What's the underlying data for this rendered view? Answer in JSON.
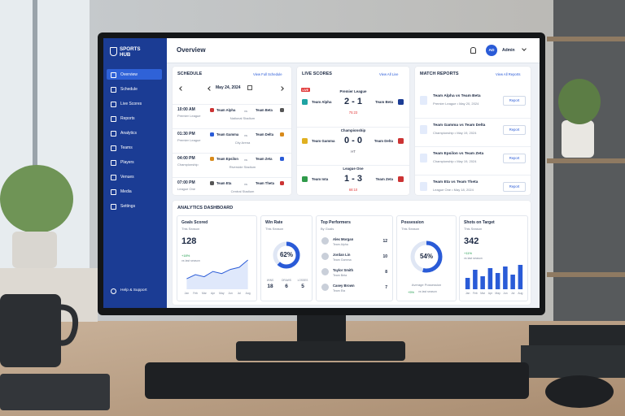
{
  "sidebar": {
    "brand": [
      "SPORTS",
      "HUB"
    ],
    "nav": [
      "Overview",
      "Schedule",
      "Live Scores",
      "Reports",
      "Analytics",
      "Teams",
      "Players",
      "Venues",
      "Media",
      "Settings"
    ],
    "help": "Help & Support"
  },
  "header": {
    "title": "Overview",
    "avatar": "AD",
    "user": "Admin"
  },
  "schedule": {
    "title": "SCHEDULE",
    "link": "View Full Schedule",
    "date": "May 24, 2024",
    "vs": "vs",
    "matches": [
      {
        "time": "10:00 AM",
        "league": "Premier League",
        "home": "Team Alpha",
        "away": "Team Beta",
        "venue": "National Stadium"
      },
      {
        "time": "01:30 PM",
        "league": "Premier League",
        "home": "Team Gamma",
        "away": "Team Delta",
        "venue": "City Arena"
      },
      {
        "time": "04:00 PM",
        "league": "Championship",
        "home": "Team Epsilon",
        "away": "Team Zeta",
        "venue": "Riverside Stadium"
      },
      {
        "time": "07:00 PM",
        "league": "League One",
        "home": "Team Eta",
        "away": "Team Theta",
        "venue": "Central Stadium"
      }
    ]
  },
  "live_scores": {
    "title": "LIVE SCORES",
    "link": "View All Live",
    "badge": "LIVE",
    "matches": [
      {
        "league": "Premier League",
        "home": "Team Alpha",
        "score": "2 - 1",
        "away": "Team Beta",
        "status": "75:23"
      },
      {
        "league": "Championship",
        "home": "Team Gamma",
        "score": "0 - 0",
        "away": "Team Delta",
        "status": "HT"
      },
      {
        "league": "League One",
        "home": "Team Iota",
        "score": "1 - 3",
        "away": "Team Zeta",
        "status": "68:10"
      }
    ]
  },
  "match_reports": {
    "title": "MATCH REPORTS",
    "link": "View All Reports",
    "button": "Report",
    "items": [
      {
        "title": "Team Alpha vs Team Beta",
        "meta": "Premier League • May 20, 2024"
      },
      {
        "title": "Team Gamma vs Team Delta",
        "meta": "Championship • May 19, 2024"
      },
      {
        "title": "Team Epsilon vs Team Zeta",
        "meta": "Championship • May 19, 2024"
      },
      {
        "title": "Team Eta vs Team Theta",
        "meta": "League One • May 18, 2024"
      }
    ]
  },
  "analytics": {
    "title": "ANALYTICS DASHBOARD",
    "months": [
      "Jan",
      "Feb",
      "Mar",
      "Apr",
      "May",
      "Jun",
      "Jul",
      "Aug"
    ],
    "goals_scored": {
      "title": "Goals Scored",
      "subtitle": "This Season",
      "value": 128,
      "change": "+18%",
      "note": "vs last season",
      "trend": [
        10,
        14,
        12,
        17,
        15,
        19,
        21,
        28
      ]
    },
    "win_rate": {
      "title": "Win Rate",
      "subtitle": "This Season",
      "value": 62,
      "value_label": "62%",
      "stats": [
        {
          "label": "WINS",
          "value": 18
        },
        {
          "label": "DRAWS",
          "value": 6
        },
        {
          "label": "LOSSES",
          "value": 5
        }
      ]
    },
    "top_performers": {
      "title": "Top Performers",
      "subtitle": "By Goals",
      "players": [
        {
          "name": "Alex Morgan",
          "team": "Team Alpha",
          "goals": 12
        },
        {
          "name": "Jordan Lin",
          "team": "Team Gamma",
          "goals": 10
        },
        {
          "name": "Taylor Smith",
          "team": "Team Beta",
          "goals": 8
        },
        {
          "name": "Casey Brown",
          "team": "Team Eta",
          "goals": 7
        }
      ]
    },
    "possession": {
      "title": "Possession",
      "subtitle": "This Season",
      "value": 54,
      "value_label": "54%",
      "label": "Average Possession",
      "change": "+5%",
      "note": "vs last season"
    },
    "shots_on_target": {
      "title": "Shots on Target",
      "subtitle": "This Season",
      "value": 342,
      "change": "+11%",
      "note": "vs last season",
      "monthly": [
        14,
        24,
        16,
        26,
        20,
        28,
        18,
        30
      ]
    }
  }
}
